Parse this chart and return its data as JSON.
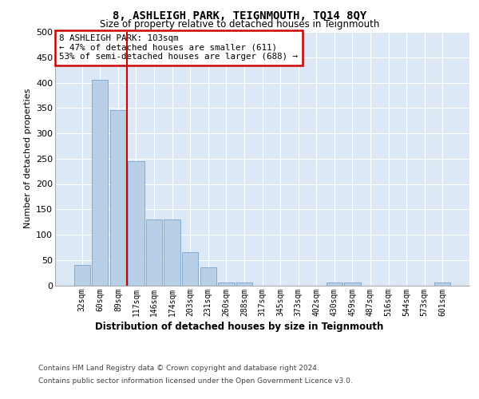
{
  "title": "8, ASHLEIGH PARK, TEIGNMOUTH, TQ14 8QY",
  "subtitle": "Size of property relative to detached houses in Teignmouth",
  "xlabel": "Distribution of detached houses by size in Teignmouth",
  "ylabel": "Number of detached properties",
  "categories": [
    "32sqm",
    "60sqm",
    "89sqm",
    "117sqm",
    "146sqm",
    "174sqm",
    "203sqm",
    "231sqm",
    "260sqm",
    "288sqm",
    "317sqm",
    "345sqm",
    "373sqm",
    "402sqm",
    "430sqm",
    "459sqm",
    "487sqm",
    "516sqm",
    "544sqm",
    "573sqm",
    "601sqm"
  ],
  "values": [
    40,
    405,
    345,
    245,
    130,
    130,
    65,
    35,
    5,
    5,
    0,
    0,
    0,
    0,
    5,
    5,
    0,
    0,
    0,
    0,
    5
  ],
  "bar_color": "#b8cfe8",
  "bar_edge_color": "#6699cc",
  "vline_color": "#cc0000",
  "vline_x_index": 2.5,
  "annotation_text": "8 ASHLEIGH PARK: 103sqm\n← 47% of detached houses are smaller (611)\n53% of semi-detached houses are larger (688) →",
  "annotation_box_color": "white",
  "annotation_box_edge_color": "#cc0000",
  "ylim": [
    0,
    500
  ],
  "yticks": [
    0,
    50,
    100,
    150,
    200,
    250,
    300,
    350,
    400,
    450,
    500
  ],
  "background_color": "#dce8f5",
  "grid_color": "white",
  "footer1": "Contains HM Land Registry data © Crown copyright and database right 2024.",
  "footer2": "Contains public sector information licensed under the Open Government Licence v3.0."
}
